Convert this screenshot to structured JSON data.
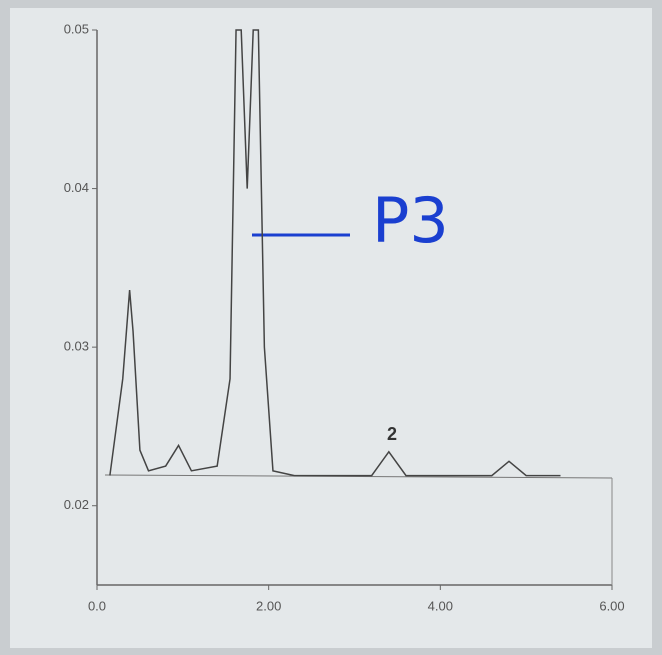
{
  "chart_data": {
    "type": "line",
    "annotations": [
      "P3",
      "2"
    ],
    "series": [
      {
        "color": "#444444",
        "x": [
          0.15,
          0.3,
          0.38,
          0.42,
          0.5,
          0.6,
          0.8,
          0.95,
          1.1,
          1.4,
          1.55,
          1.62,
          1.68,
          1.75,
          1.82,
          1.88,
          1.95,
          2.05,
          2.3,
          3.2,
          3.4,
          3.6,
          4.6,
          4.8,
          5.0,
          5.4
        ],
        "values": [
          0.0219,
          0.028,
          0.0336,
          0.031,
          0.0235,
          0.0222,
          0.0225,
          0.0238,
          0.0222,
          0.0225,
          0.028,
          0.05,
          0.05,
          0.04,
          0.05,
          0.05,
          0.03,
          0.0222,
          0.0219,
          0.0219,
          0.0234,
          0.0219,
          0.0219,
          0.0228,
          0.0219,
          0.0219
        ]
      }
    ],
    "xlim": [
      0,
      6
    ],
    "xticks": [
      {
        "value": 0,
        "label": "0.0"
      },
      {
        "value": 2,
        "label": "2.00"
      },
      {
        "value": 4,
        "label": "4.00"
      },
      {
        "value": 6,
        "label": "6.00"
      }
    ],
    "ylim": [
      0.015,
      0.05
    ],
    "yticks": [
      0.02,
      0.03,
      0.04,
      0.05
    ]
  }
}
